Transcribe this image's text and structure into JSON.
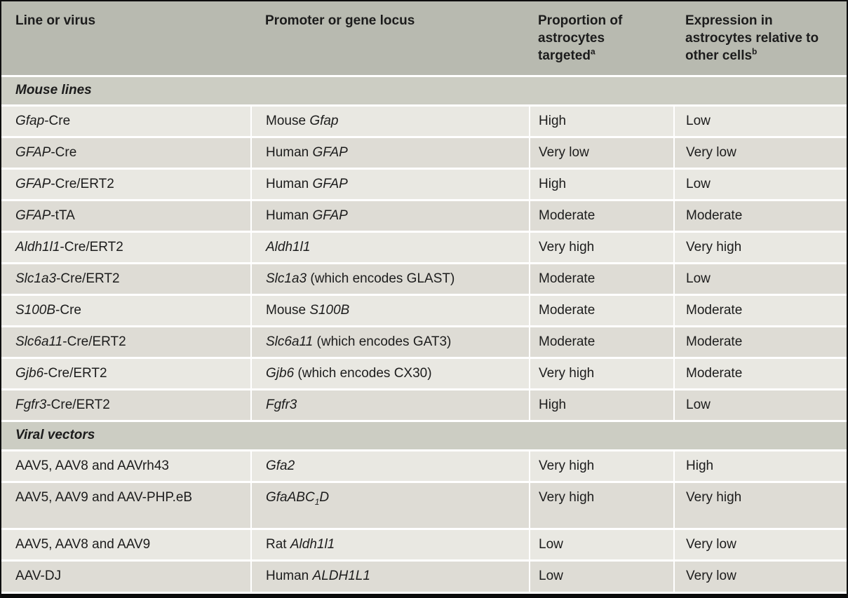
{
  "colors": {
    "header_bg": "#b8bab0",
    "section_bg": "#cccdc3",
    "row_light_bg": "#e9e8e2",
    "row_dark_bg": "#dedcd5",
    "grid_line": "#ffffff",
    "text": "#1c1c1c",
    "frame": "#0e0e0e"
  },
  "table": {
    "columns": [
      {
        "segments": [
          {
            "t": "Line or virus"
          }
        ]
      },
      {
        "segments": [
          {
            "t": "Promoter or gene locus"
          }
        ]
      },
      {
        "segments": [
          {
            "t": "Proportion of astrocytes targeted"
          },
          {
            "t": "a",
            "sup": true
          }
        ]
      },
      {
        "segments": [
          {
            "t": "Expression in astrocytes relative to other cells"
          },
          {
            "t": "b",
            "sup": true
          }
        ]
      }
    ],
    "sections": [
      {
        "title": "Mouse lines",
        "rows": [
          {
            "cells": [
              [
                {
                  "t": "Gfap",
                  "i": true
                },
                {
                  "t": "-Cre"
                }
              ],
              [
                {
                  "t": "Mouse "
                },
                {
                  "t": "Gfap",
                  "i": true
                }
              ],
              [
                {
                  "t": "High"
                }
              ],
              [
                {
                  "t": "Low"
                }
              ]
            ]
          },
          {
            "cells": [
              [
                {
                  "t": "GFAP",
                  "i": true
                },
                {
                  "t": "-Cre"
                }
              ],
              [
                {
                  "t": "Human "
                },
                {
                  "t": "GFAP",
                  "i": true
                }
              ],
              [
                {
                  "t": "Very low"
                }
              ],
              [
                {
                  "t": "Very low"
                }
              ]
            ]
          },
          {
            "cells": [
              [
                {
                  "t": "GFAP",
                  "i": true
                },
                {
                  "t": "-Cre/ERT2"
                }
              ],
              [
                {
                  "t": "Human "
                },
                {
                  "t": "GFAP",
                  "i": true
                }
              ],
              [
                {
                  "t": "High"
                }
              ],
              [
                {
                  "t": "Low"
                }
              ]
            ]
          },
          {
            "cells": [
              [
                {
                  "t": "GFAP",
                  "i": true
                },
                {
                  "t": "-tTA"
                }
              ],
              [
                {
                  "t": "Human "
                },
                {
                  "t": "GFAP",
                  "i": true
                }
              ],
              [
                {
                  "t": "Moderate"
                }
              ],
              [
                {
                  "t": "Moderate"
                }
              ]
            ]
          },
          {
            "cells": [
              [
                {
                  "t": "Aldh1l1",
                  "i": true
                },
                {
                  "t": "-Cre/ERT2"
                }
              ],
              [
                {
                  "t": "Aldh1l1",
                  "i": true
                }
              ],
              [
                {
                  "t": "Very high"
                }
              ],
              [
                {
                  "t": "Very high"
                }
              ]
            ]
          },
          {
            "cells": [
              [
                {
                  "t": "Slc1a3",
                  "i": true
                },
                {
                  "t": "-Cre/ERT2"
                }
              ],
              [
                {
                  "t": "Slc1a3",
                  "i": true
                },
                {
                  "t": " (which encodes GLAST)"
                }
              ],
              [
                {
                  "t": "Moderate"
                }
              ],
              [
                {
                  "t": "Low"
                }
              ]
            ]
          },
          {
            "cells": [
              [
                {
                  "t": "S100B",
                  "i": true
                },
                {
                  "t": "-Cre"
                }
              ],
              [
                {
                  "t": "Mouse "
                },
                {
                  "t": "S100B",
                  "i": true
                }
              ],
              [
                {
                  "t": "Moderate"
                }
              ],
              [
                {
                  "t": "Moderate"
                }
              ]
            ]
          },
          {
            "cells": [
              [
                {
                  "t": "Slc6a11",
                  "i": true
                },
                {
                  "t": "-Cre/ERT2"
                }
              ],
              [
                {
                  "t": "Slc6a11",
                  "i": true
                },
                {
                  "t": " (which encodes GAT3)"
                }
              ],
              [
                {
                  "t": "Moderate"
                }
              ],
              [
                {
                  "t": "Moderate"
                }
              ]
            ]
          },
          {
            "cells": [
              [
                {
                  "t": "Gjb6",
                  "i": true
                },
                {
                  "t": "-Cre/ERT2"
                }
              ],
              [
                {
                  "t": "Gjb6",
                  "i": true
                },
                {
                  "t": " (which encodes CX30)"
                }
              ],
              [
                {
                  "t": "Very high"
                }
              ],
              [
                {
                  "t": "Moderate"
                }
              ]
            ]
          },
          {
            "cells": [
              [
                {
                  "t": "Fgfr3",
                  "i": true
                },
                {
                  "t": "-Cre/ERT2"
                }
              ],
              [
                {
                  "t": "Fgfr3",
                  "i": true
                }
              ],
              [
                {
                  "t": "High"
                }
              ],
              [
                {
                  "t": "Low"
                }
              ]
            ]
          }
        ]
      },
      {
        "title": "Viral vectors",
        "rows": [
          {
            "cells": [
              [
                {
                  "t": "AAV5, AAV8 and AAVrh43"
                }
              ],
              [
                {
                  "t": "Gfa2",
                  "i": true
                }
              ],
              [
                {
                  "t": "Very high"
                }
              ],
              [
                {
                  "t": "High"
                }
              ]
            ]
          },
          {
            "tall": true,
            "cells": [
              [
                {
                  "t": "AAV5, AAV9 and AAV-PHP.eB"
                }
              ],
              [
                {
                  "t": "GfaABC",
                  "i": true
                },
                {
                  "t": "1",
                  "sub": true,
                  "i": true
                },
                {
                  "t": "D",
                  "i": true
                }
              ],
              [
                {
                  "t": "Very high"
                }
              ],
              [
                {
                  "t": "Very high"
                }
              ]
            ]
          },
          {
            "cells": [
              [
                {
                  "t": "AAV5, AAV8 and AAV9"
                }
              ],
              [
                {
                  "t": "Rat "
                },
                {
                  "t": "Aldh1l1",
                  "i": true
                }
              ],
              [
                {
                  "t": "Low"
                }
              ],
              [
                {
                  "t": "Very low"
                }
              ]
            ]
          },
          {
            "cells": [
              [
                {
                  "t": "AAV-DJ"
                }
              ],
              [
                {
                  "t": "Human "
                },
                {
                  "t": "ALDH1L1",
                  "i": true
                }
              ],
              [
                {
                  "t": "Low"
                }
              ],
              [
                {
                  "t": "Very low"
                }
              ]
            ]
          }
        ]
      }
    ]
  }
}
